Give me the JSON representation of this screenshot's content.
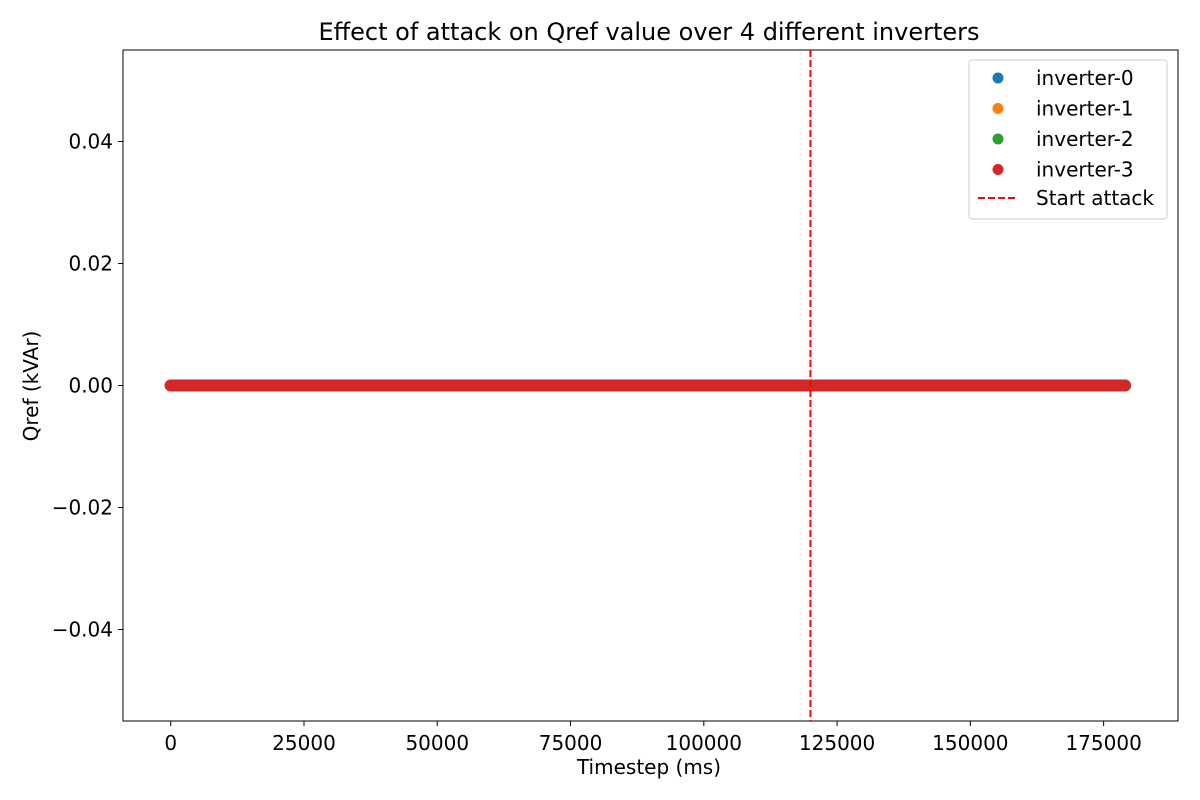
{
  "chart_data": {
    "type": "scatter",
    "title": "Effect of attack on Qref value over 4 different inverters",
    "xlabel": "Timestep (ms)",
    "ylabel": "Qref (kVAr)",
    "xlim": [
      -8950,
      188950
    ],
    "ylim": [
      -0.055,
      0.055
    ],
    "xticks": [
      0,
      25000,
      50000,
      75000,
      100000,
      125000,
      150000,
      175000
    ],
    "xtick_labels": [
      "0",
      "25000",
      "50000",
      "75000",
      "100000",
      "125000",
      "150000",
      "175000"
    ],
    "yticks": [
      0.04,
      0.02,
      0.0,
      -0.02,
      -0.04
    ],
    "ytick_labels": [
      "0.04",
      "0.02",
      "0.00",
      "−0.02",
      "−0.04"
    ],
    "series": [
      {
        "name": "inverter-0",
        "color": "#1f77b4",
        "x_range": [
          0,
          179000
        ],
        "y": 0.0
      },
      {
        "name": "inverter-1",
        "color": "#ff7f0e",
        "x_range": [
          0,
          179000
        ],
        "y": 0.0
      },
      {
        "name": "inverter-2",
        "color": "#2ca02c",
        "x_range": [
          0,
          179000
        ],
        "y": 0.0
      },
      {
        "name": "inverter-3",
        "color": "#d62728",
        "x_range": [
          0,
          179000
        ],
        "y": 0.0
      }
    ],
    "vline": {
      "name": "Start attack",
      "x": 120000,
      "color": "#ff0000",
      "style": "dashed"
    },
    "legend_placement": "top-right",
    "grid": false
  }
}
